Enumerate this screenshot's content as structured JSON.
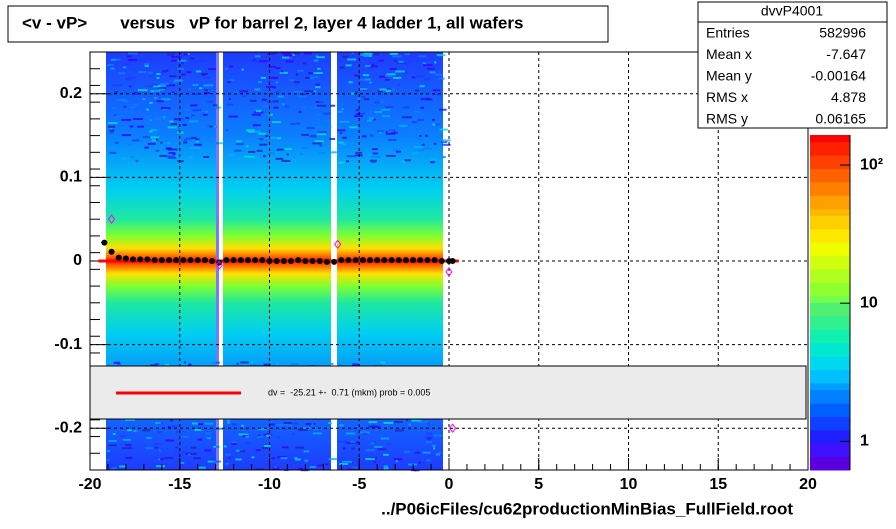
{
  "chart_data": {
    "type": "scatter",
    "title": "<v - vP>       versus   vP for barrel 2, layer 4 ladder 1, all wafers",
    "x_label": "../P06icFiles/cu62productionMinBias_FullField.root",
    "xlim": [
      -20,
      20
    ],
    "xticks": [
      -20,
      -15,
      -10,
      -5,
      0,
      5,
      10,
      15,
      20
    ],
    "ylim": [
      -0.25,
      0.25
    ],
    "yticks": [
      -0.2,
      -0.1,
      0,
      0.1,
      0.2
    ],
    "grid": true,
    "series": [
      {
        "color": "#000000",
        "marker": "dot",
        "x": [
          -19.2,
          -18.8,
          -18.4,
          -18,
          -17.6,
          -17.2,
          -16.8,
          -16.4,
          -16,
          -15.6,
          -15.2,
          -14.8,
          -14.4,
          -14,
          -13.6,
          -13.2,
          -12.8,
          -12.4,
          -12,
          -11.6,
          -11.2,
          -10.8,
          -10.4,
          -10,
          -9.6,
          -9.2,
          -8.8,
          -8.4,
          -8,
          -7.6,
          -7.2,
          -6.8,
          -6.4,
          -6,
          -5.6,
          -5.2,
          -4.8,
          -4.4,
          -4,
          -3.6,
          -3.2,
          -2.8,
          -2.4,
          -2,
          -1.6,
          -1.2,
          -0.8,
          -0.4,
          0,
          0.2
        ],
        "values": [
          0.022,
          0.011,
          0.004,
          0.003,
          0.002,
          0.002,
          0.002,
          0.001,
          0.001,
          0.001,
          0.001,
          0.001,
          0.001,
          0.001,
          0.001,
          0,
          -0.002,
          0.001,
          0.001,
          0.001,
          0.001,
          0.001,
          0.001,
          0,
          0,
          0,
          0,
          0.001,
          0,
          0,
          0,
          -0.001,
          -0.001,
          0.001,
          0.001,
          0.001,
          0.001,
          0.001,
          0.001,
          0.001,
          0.001,
          0.001,
          0.001,
          0.001,
          0.001,
          0.001,
          0.001,
          0,
          0,
          0
        ]
      },
      {
        "color": "#ff00ff",
        "marker": "open-diamond",
        "x": [
          -18.8,
          -12.8,
          -6.2,
          0,
          0.2
        ],
        "values": [
          0.05,
          -0.005,
          0.02,
          -0.013,
          -0.2
        ]
      }
    ],
    "fit": {
      "label": "dv =  -25.21 +-  0.71 (mkm) prob = 0.005",
      "color": "#ff0000"
    },
    "colorbar": {
      "log": true,
      "zlim": [
        0.62,
        165
      ],
      "zticks": [
        {
          "value": 1,
          "label": "1"
        },
        {
          "value": 10,
          "label": "10"
        },
        {
          "value": 100,
          "label": "10²"
        }
      ]
    },
    "stats": {
      "title": "dvvP4001",
      "rows": [
        [
          "Entries",
          582996
        ],
        [
          "Mean x",
          -7.647
        ],
        [
          "Mean y",
          -0.00164
        ],
        [
          "RMS x",
          4.878
        ],
        [
          "RMS y",
          0.06165
        ]
      ]
    }
  }
}
